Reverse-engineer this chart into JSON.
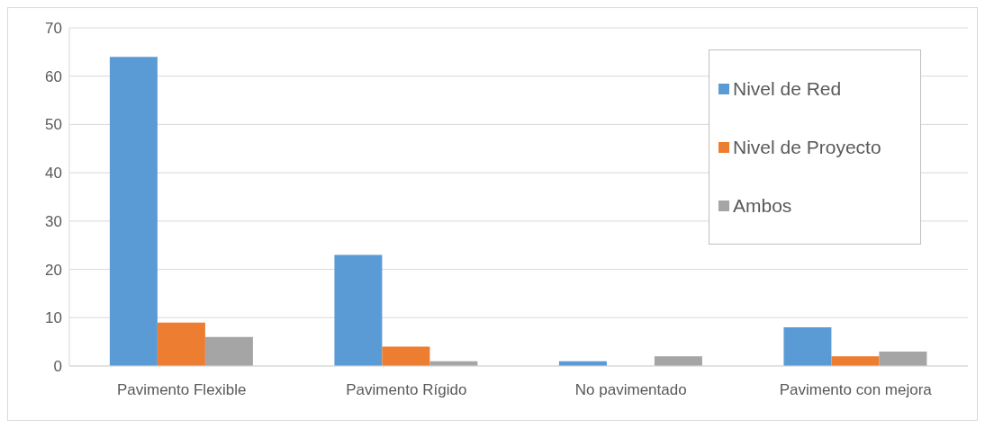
{
  "chart_data": {
    "type": "bar",
    "categories": [
      "Pavimento Flexible",
      "Pavimento Rígido",
      "No pavimentado",
      "Pavimento con mejora"
    ],
    "series": [
      {
        "name": "Nivel de Red",
        "color": "#5b9bd5",
        "values": [
          64,
          23,
          1,
          8
        ]
      },
      {
        "name": "Nivel de Proyecto",
        "color": "#ed7d31",
        "values": [
          9,
          4,
          0,
          2
        ]
      },
      {
        "name": "Ambos",
        "color": "#a5a5a5",
        "values": [
          6,
          1,
          2,
          3
        ]
      }
    ],
    "ylim": [
      0,
      70
    ],
    "yticks": [
      0,
      10,
      20,
      30,
      40,
      50,
      60,
      70
    ],
    "grid": "y",
    "legend": "top right"
  }
}
